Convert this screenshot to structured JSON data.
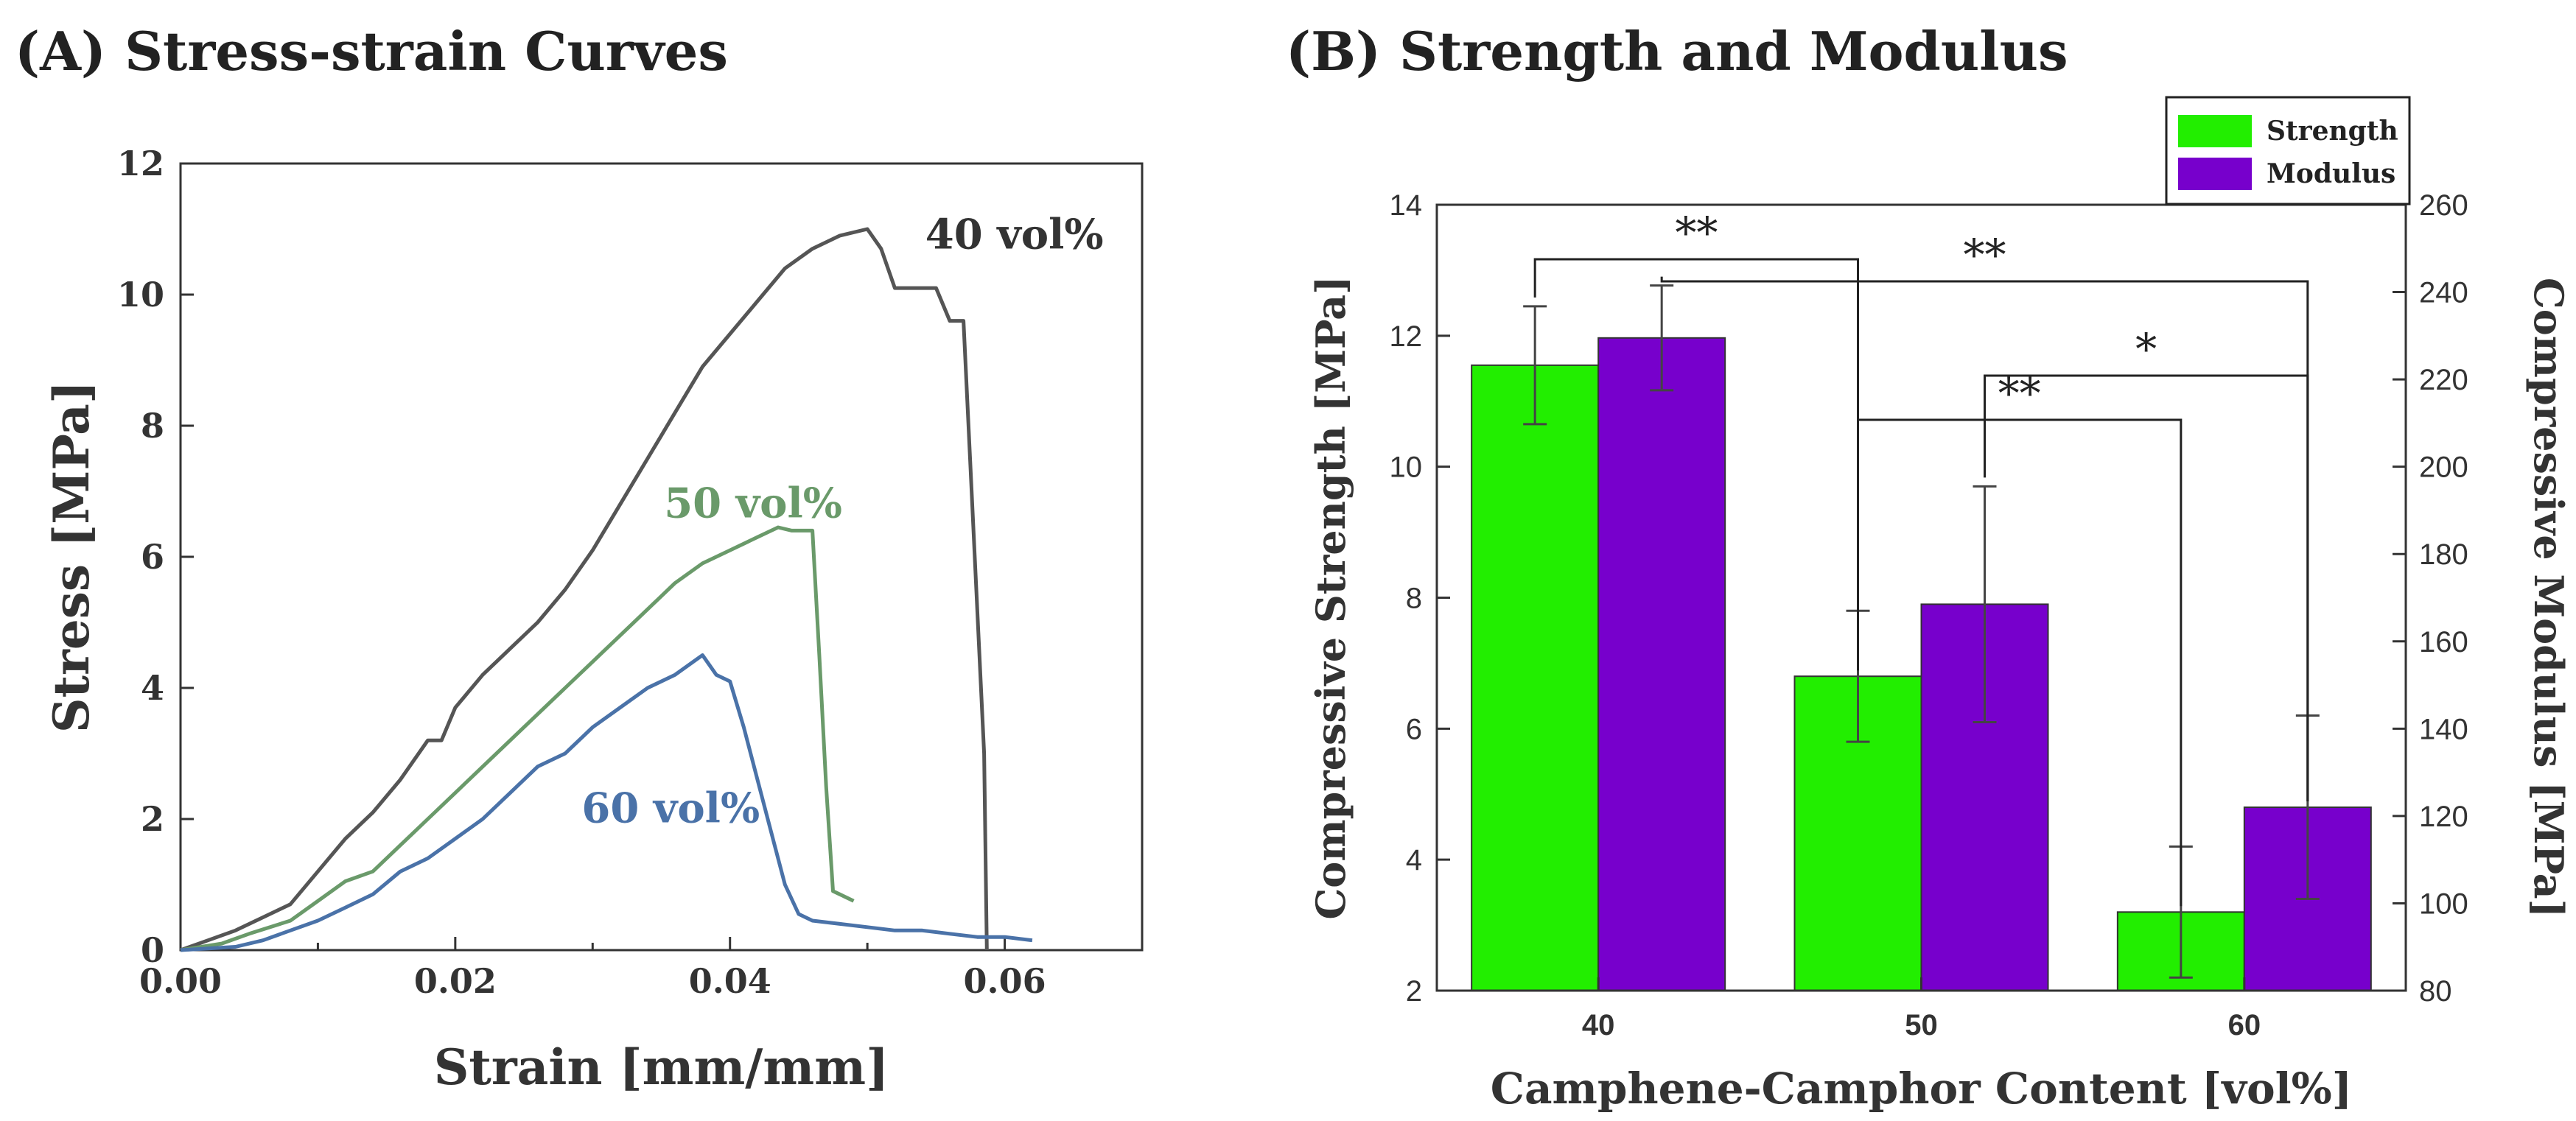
{
  "chart_data": [
    {
      "type": "line",
      "panel_title": "(A) Stress-strain Curves",
      "xlabel": "Strain [mm/mm]",
      "ylabel": "Stress [MPa]",
      "xlim": [
        0,
        0.07
      ],
      "ylim": [
        0,
        12
      ],
      "xticks": [
        0,
        0.02,
        0.04,
        0.06
      ],
      "xtick_labels": [
        "0.00",
        "0.02",
        "0.04",
        "0.06"
      ],
      "yticks": [
        0,
        2,
        4,
        6,
        8,
        10,
        12
      ],
      "ytick_labels": [
        "0",
        "2",
        "4",
        "6",
        "8",
        "10",
        "12"
      ],
      "series": [
        {
          "name": "40 vol%",
          "label": "40 vol%",
          "color": "#555555",
          "x": [
            0,
            0.002,
            0.004,
            0.006,
            0.008,
            0.01,
            0.012,
            0.014,
            0.016,
            0.018,
            0.019,
            0.02,
            0.022,
            0.024,
            0.026,
            0.028,
            0.03,
            0.032,
            0.034,
            0.036,
            0.038,
            0.04,
            0.042,
            0.044,
            0.046,
            0.048,
            0.05,
            0.051,
            0.052,
            0.053,
            0.055,
            0.056,
            0.057,
            0.0585,
            0.0587
          ],
          "y": [
            0,
            0.15,
            0.3,
            0.5,
            0.7,
            1.2,
            1.7,
            2.1,
            2.6,
            3.2,
            3.2,
            3.7,
            4.2,
            4.6,
            5.0,
            5.5,
            6.1,
            6.8,
            7.5,
            8.2,
            8.9,
            9.4,
            9.9,
            10.4,
            10.7,
            10.9,
            11.0,
            10.7,
            10.1,
            10.1,
            10.1,
            9.6,
            9.6,
            3.0,
            0
          ]
        },
        {
          "name": "50 vol%",
          "label": "50 vol%",
          "color": "#6a9a6a",
          "x": [
            0,
            0.003,
            0.005,
            0.008,
            0.01,
            0.012,
            0.014,
            0.016,
            0.018,
            0.02,
            0.022,
            0.024,
            0.026,
            0.028,
            0.03,
            0.032,
            0.034,
            0.036,
            0.038,
            0.04,
            0.042,
            0.0435,
            0.0445,
            0.046,
            0.0465,
            0.047,
            0.0475,
            0.048,
            0.049
          ],
          "y": [
            0,
            0.1,
            0.25,
            0.45,
            0.75,
            1.05,
            1.2,
            1.6,
            2.0,
            2.4,
            2.8,
            3.2,
            3.6,
            4.0,
            4.4,
            4.8,
            5.2,
            5.6,
            5.9,
            6.1,
            6.3,
            6.45,
            6.4,
            6.4,
            4.5,
            2.5,
            0.9,
            0.85,
            0.75
          ]
        },
        {
          "name": "60 vol%",
          "label": "60 vol%",
          "color": "#4a72a8",
          "x": [
            0,
            0.004,
            0.006,
            0.008,
            0.01,
            0.012,
            0.014,
            0.016,
            0.018,
            0.02,
            0.022,
            0.024,
            0.026,
            0.028,
            0.03,
            0.032,
            0.034,
            0.036,
            0.038,
            0.039,
            0.04,
            0.041,
            0.042,
            0.043,
            0.044,
            0.045,
            0.046,
            0.048,
            0.05,
            0.052,
            0.054,
            0.056,
            0.058,
            0.06,
            0.062
          ],
          "y": [
            0,
            0.05,
            0.15,
            0.3,
            0.45,
            0.65,
            0.85,
            1.2,
            1.4,
            1.7,
            2.0,
            2.4,
            2.8,
            3.0,
            3.4,
            3.7,
            4.0,
            4.2,
            4.5,
            4.2,
            4.1,
            3.4,
            2.6,
            1.8,
            1.0,
            0.55,
            0.45,
            0.4,
            0.35,
            0.3,
            0.3,
            0.25,
            0.2,
            0.2,
            0.15
          ]
        }
      ]
    },
    {
      "type": "bar",
      "panel_title": "(B) Strength and Modulus",
      "xlabel": "Camphene-Camphor Content [vol%]",
      "ylabel": "Compressive Strength [MPa]",
      "ylabel_right": "Compressive Modulus [MPa]",
      "categories": [
        "40",
        "50",
        "60"
      ],
      "ylim": [
        2,
        14
      ],
      "yticks": [
        2,
        4,
        6,
        8,
        10,
        12,
        14
      ],
      "ylim_right": [
        80,
        260
      ],
      "yticks_right": [
        80,
        100,
        120,
        140,
        160,
        180,
        200,
        220,
        240,
        260
      ],
      "legend_position": "top-right",
      "series": [
        {
          "name": "Strength",
          "axis": "left",
          "color": "#22ee00",
          "values": [
            11.55,
            6.8,
            3.2
          ],
          "errors": [
            0.9,
            1.0,
            1.0
          ]
        },
        {
          "name": "Modulus",
          "axis": "right",
          "color": "#7700cc",
          "values": [
            229.5,
            168.5,
            122
          ],
          "errors": [
            12,
            27,
            21
          ]
        }
      ],
      "significance": [
        {
          "from": "Strength 40",
          "to": "Strength 50",
          "label": "**"
        },
        {
          "from": "Modulus 40",
          "to": "Modulus 60",
          "label": "**"
        },
        {
          "from": "Strength 50",
          "to": "Strength 60",
          "label": "**"
        },
        {
          "from": "Modulus 50",
          "to": "Modulus 60",
          "label": "*"
        }
      ]
    }
  ]
}
